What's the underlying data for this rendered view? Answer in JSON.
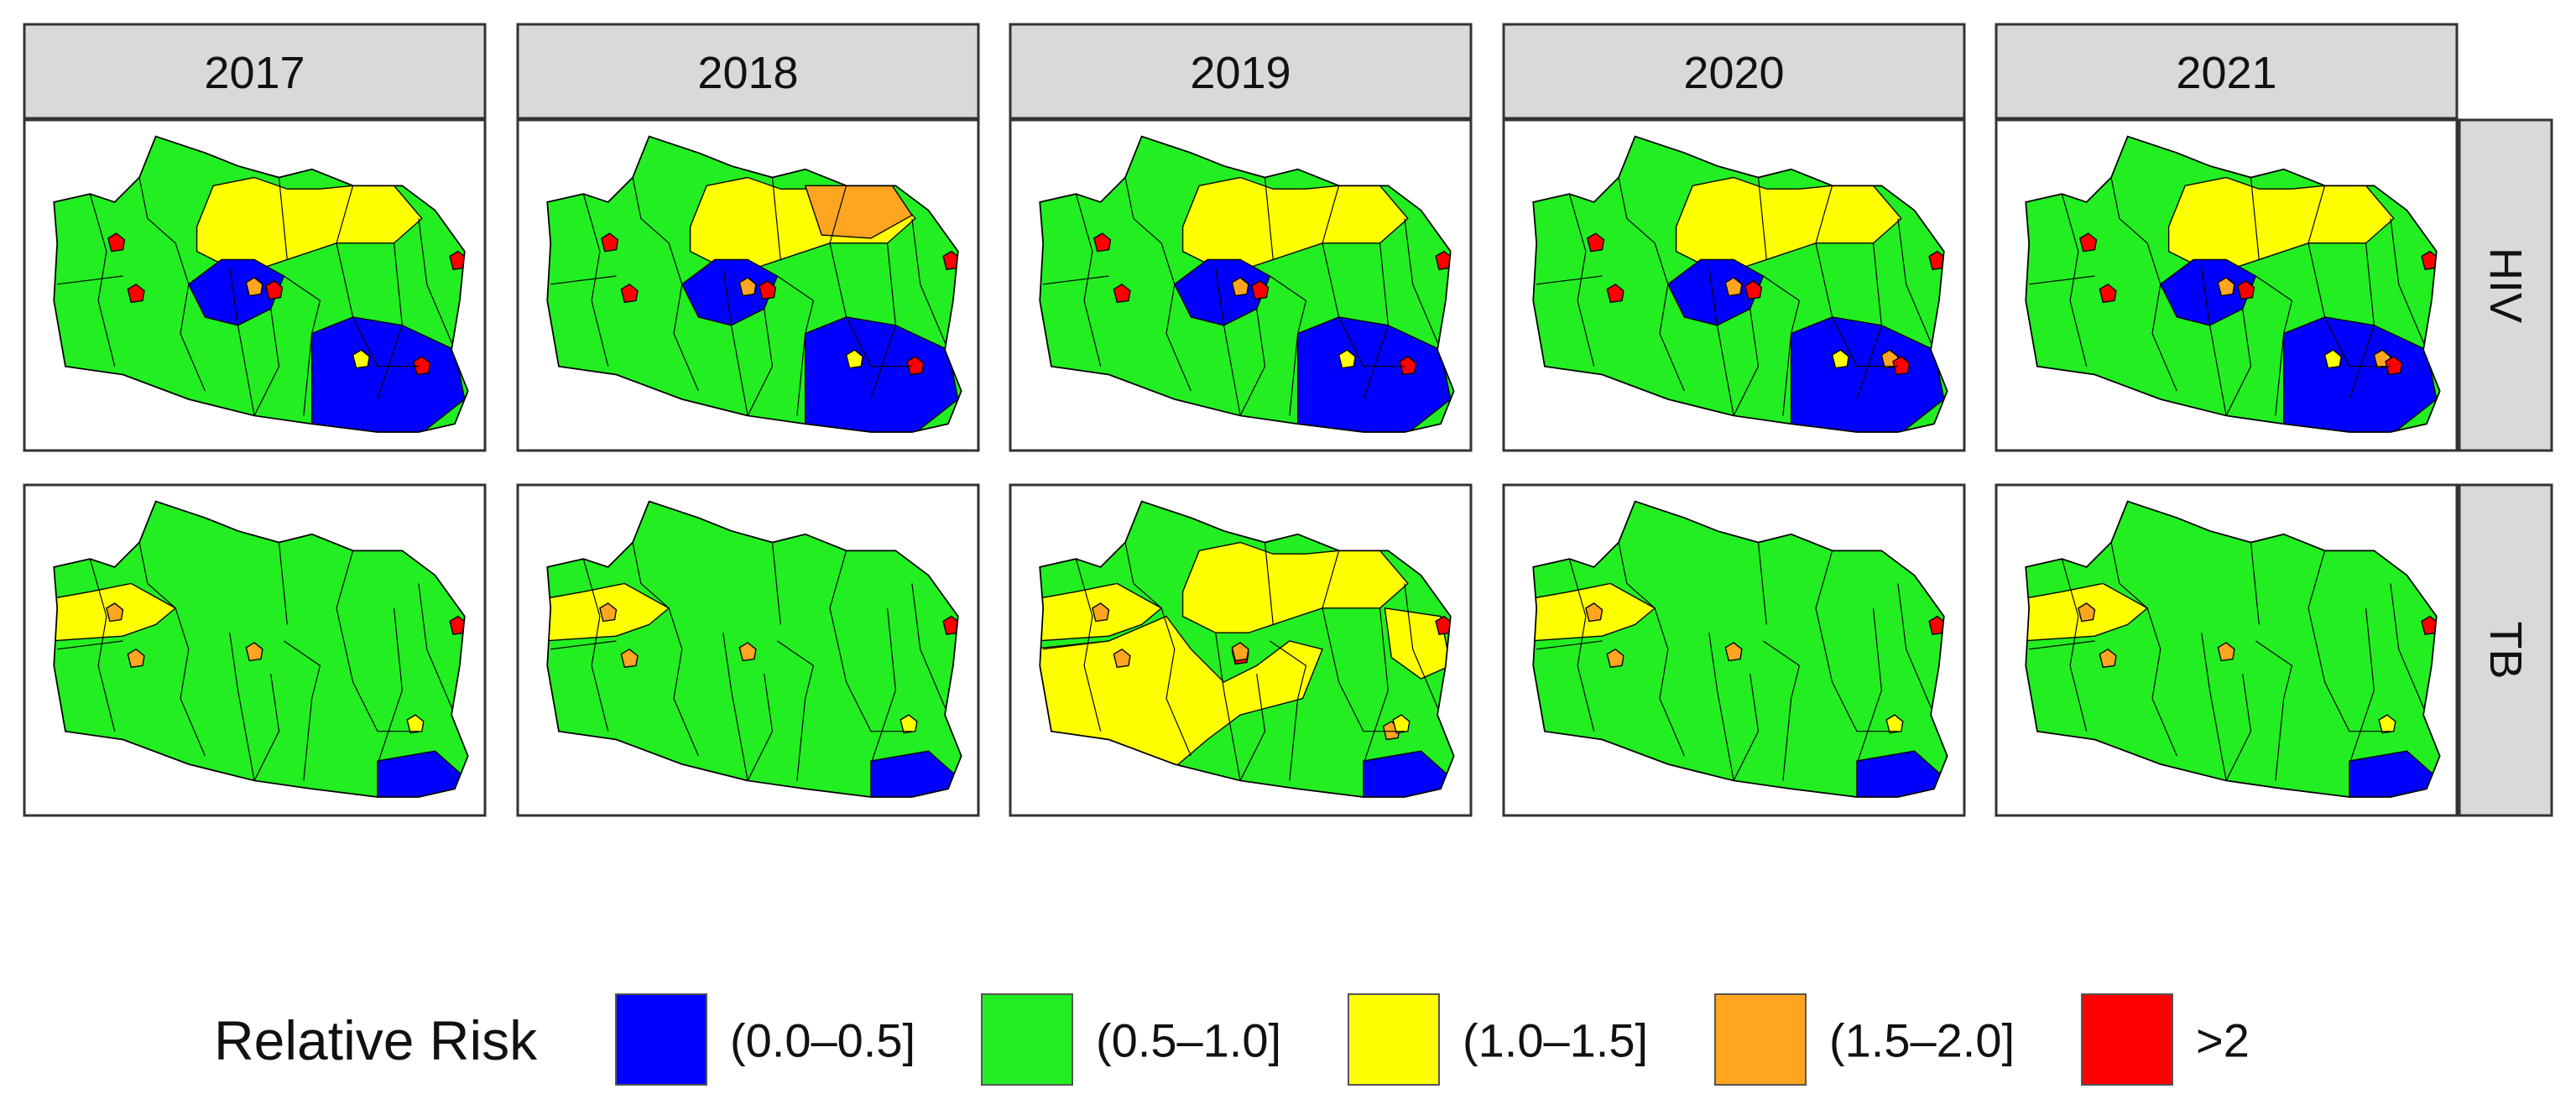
{
  "columns": [
    "2017",
    "2018",
    "2019",
    "2020",
    "2021"
  ],
  "rows": [
    "HIV",
    "TB"
  ],
  "legend": {
    "title": "Relative Risk",
    "items": [
      {
        "label": "(0.0–0.5]",
        "color": "#0000ff"
      },
      {
        "label": "(0.5–1.0]",
        "color": "#22ee22"
      },
      {
        "label": "(1.0–1.5]",
        "color": "#ffff00"
      },
      {
        "label": "(1.5–2.0]",
        "color": "#ffa520"
      },
      {
        "label": ">2",
        "color": "#ff0000"
      }
    ]
  }
}
